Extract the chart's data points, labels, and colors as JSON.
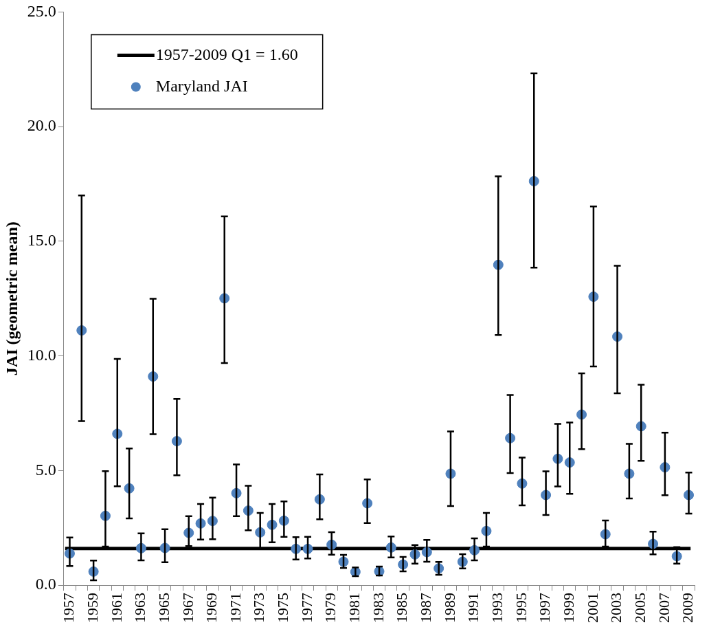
{
  "chart_data": {
    "type": "scatter",
    "ylabel": "JAI (geometric mean)",
    "categories": [
      "1957",
      null,
      "1959",
      null,
      "1961",
      null,
      "1963",
      null,
      "1965",
      null,
      "1967",
      null,
      "1969",
      null,
      "1971",
      null,
      "1973",
      null,
      "1975",
      null,
      "1977",
      null,
      "1979",
      null,
      "1981",
      null,
      "1983",
      null,
      "1985",
      null,
      "1987",
      null,
      "1989",
      null,
      "1991",
      null,
      "1993",
      null,
      "1995",
      null,
      "1997",
      null,
      "1999",
      null,
      "2001",
      null,
      "2003",
      null,
      "2005",
      null,
      "2007",
      null,
      "2009"
    ],
    "series": [
      {
        "name": "Maryland JAI",
        "color": "#4f81bd",
        "values": [
          1.38,
          11.11,
          0.59,
          3.02,
          6.6,
          4.22,
          1.61,
          9.1,
          1.62,
          6.28,
          2.28,
          2.69,
          2.8,
          12.51,
          4.01,
          3.25,
          2.3,
          2.63,
          2.81,
          1.58,
          1.58,
          3.74,
          1.76,
          1.02,
          0.58,
          3.57,
          0.6,
          1.64,
          0.9,
          1.34,
          1.44,
          0.73,
          4.86,
          1.02,
          1.52,
          2.36,
          13.97,
          6.41,
          4.43,
          17.62,
          3.93,
          5.51,
          5.35,
          7.44,
          12.58,
          2.22,
          10.84,
          4.86,
          6.93,
          1.8,
          5.14,
          1.26,
          3.93
        ],
        "errors": [
          [
            0.83,
            2.08
          ],
          [
            7.15,
            17.0
          ],
          [
            0.21,
            1.07
          ],
          [
            1.68,
            4.97
          ],
          [
            4.31,
            9.87
          ],
          [
            2.91,
            5.96
          ],
          [
            1.08,
            2.26
          ],
          [
            6.58,
            12.49
          ],
          [
            1.0,
            2.44
          ],
          [
            4.79,
            8.12
          ],
          [
            1.7,
            3.01
          ],
          [
            1.99,
            3.54
          ],
          [
            2.0,
            3.82
          ],
          [
            9.69,
            16.08
          ],
          [
            3.01,
            5.26
          ],
          [
            2.39,
            4.33
          ],
          [
            1.6,
            3.15
          ],
          [
            1.87,
            3.54
          ],
          [
            2.11,
            3.65
          ],
          [
            1.12,
            2.09
          ],
          [
            1.16,
            2.11
          ],
          [
            2.87,
            4.83
          ],
          [
            1.33,
            2.31
          ],
          [
            0.75,
            1.32
          ],
          [
            0.39,
            0.77
          ],
          [
            2.71,
            4.61
          ],
          [
            0.42,
            0.81
          ],
          [
            1.21,
            2.12
          ],
          [
            0.6,
            1.23
          ],
          [
            0.94,
            1.75
          ],
          [
            1.02,
            1.97
          ],
          [
            0.45,
            1.01
          ],
          [
            3.45,
            6.7
          ],
          [
            0.73,
            1.35
          ],
          [
            1.08,
            2.04
          ],
          [
            1.68,
            3.15
          ],
          [
            10.91,
            17.83
          ],
          [
            4.89,
            8.29
          ],
          [
            3.48,
            5.56
          ],
          [
            13.85,
            22.32
          ],
          [
            3.06,
            4.96
          ],
          [
            4.3,
            7.03
          ],
          [
            3.98,
            7.09
          ],
          [
            5.93,
            9.24
          ],
          [
            9.54,
            16.52
          ],
          [
            1.68,
            2.82
          ],
          [
            8.37,
            13.93
          ],
          [
            3.78,
            6.16
          ],
          [
            5.42,
            8.74
          ],
          [
            1.34,
            2.33
          ],
          [
            3.92,
            6.65
          ],
          [
            0.94,
            1.66
          ],
          [
            3.12,
            4.91
          ]
        ]
      }
    ],
    "ref_lines": [
      {
        "axis": "y",
        "value": 1.6,
        "label": "1957-2009 Q1 = 1.60",
        "color": "#000000"
      }
    ],
    "ylim": [
      0,
      25
    ],
    "yticks": [
      {
        "value": 0,
        "label": "0.0"
      },
      {
        "value": 5,
        "label": "5.0"
      },
      {
        "value": 10,
        "label": "10.0"
      },
      {
        "value": 15,
        "label": "15.0"
      },
      {
        "value": 20,
        "label": "20.0"
      },
      {
        "value": 25,
        "label": "25.0"
      }
    ],
    "legend": "top left",
    "marker": "circle"
  }
}
